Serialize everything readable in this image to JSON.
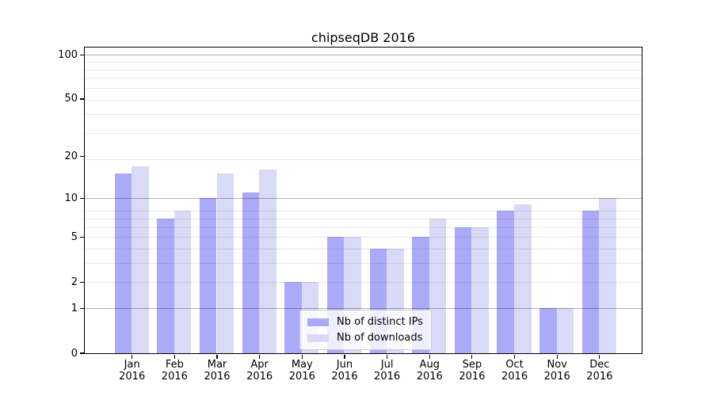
{
  "chart_data": {
    "type": "bar",
    "title": "chipseqDB 2016",
    "categories": [
      "Jan",
      "Feb",
      "Mar",
      "Apr",
      "May",
      "Jun",
      "Jul",
      "Aug",
      "Sep",
      "Oct",
      "Nov",
      "Dec"
    ],
    "year_label": "2016",
    "series": [
      {
        "name": "Nb of distinct IPs",
        "color": "#aaaaf8",
        "values": [
          15,
          7,
          10,
          11,
          2,
          5,
          4,
          5,
          6,
          8,
          1,
          8
        ]
      },
      {
        "name": "Nb of downloads",
        "color": "#d9d9f8",
        "values": [
          17,
          8,
          15,
          16,
          2,
          5,
          4,
          7,
          6,
          9,
          1,
          10
        ]
      }
    ],
    "xlabel": "",
    "ylabel": "",
    "yscale": "log10(1+y)",
    "y_ticks": [
      0,
      1,
      2,
      5,
      10,
      20,
      50,
      100
    ],
    "y_axis_top_value": 112,
    "grid_major_values": [
      1,
      10,
      100
    ],
    "grid_minor_values": [
      2,
      3,
      4,
      5,
      6,
      7,
      8,
      19,
      29,
      39,
      49,
      59,
      69,
      79,
      89
    ],
    "legend_position": "lower center",
    "colors": {
      "background": "#ffffff",
      "spine": "#000000",
      "text": "#000000",
      "grid_major": "rgba(0,0,0,0.30)",
      "grid_minor": "rgba(0,0,0,0.09)",
      "legend_border": "#cccccc",
      "legend_background": "rgba(255,255,255,0.8)"
    }
  }
}
